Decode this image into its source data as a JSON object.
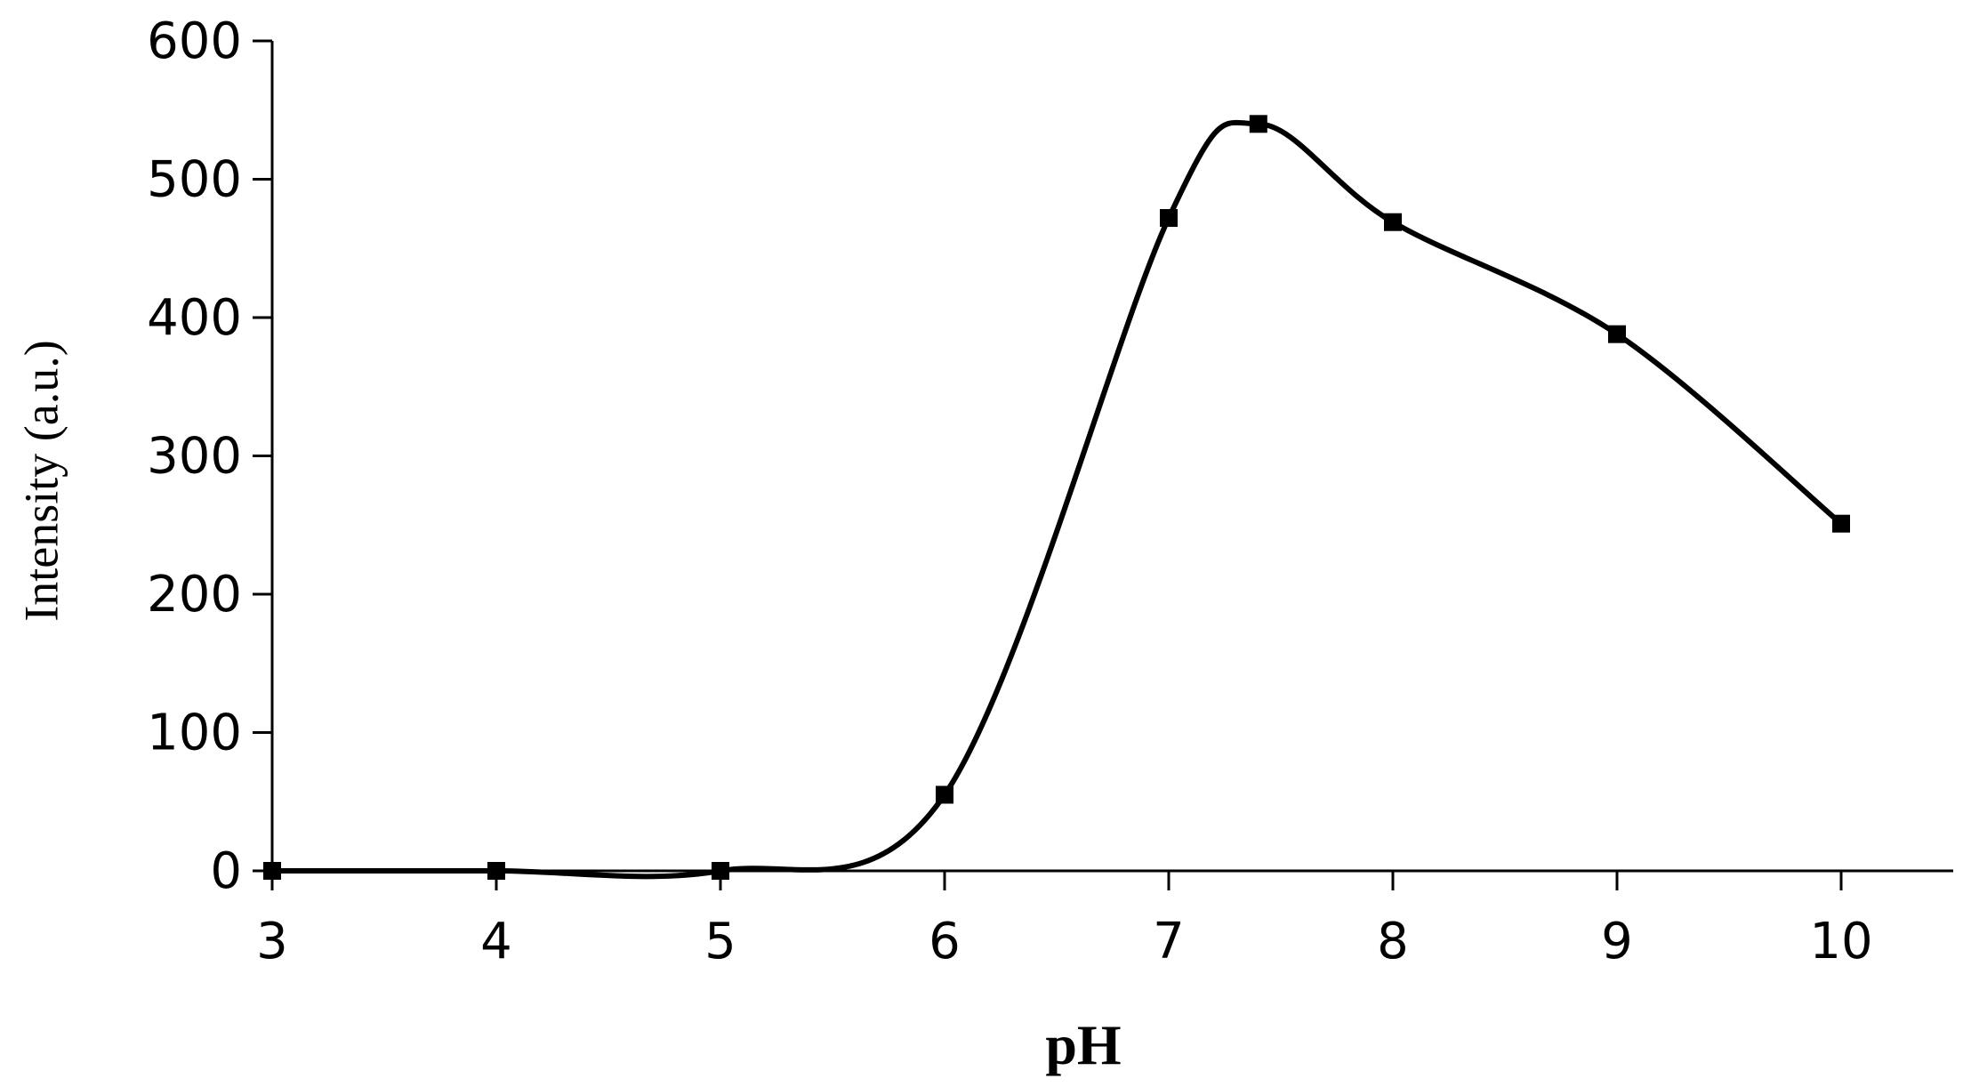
{
  "chart_data": {
    "type": "line",
    "title": "",
    "xlabel": "pH",
    "ylabel": "Intensity (a.u.)",
    "xlim": [
      3,
      10
    ],
    "ylim": [
      0,
      600
    ],
    "x_ticks": [
      3,
      4,
      5,
      6,
      7,
      8,
      9,
      10
    ],
    "y_ticks": [
      0,
      100,
      200,
      300,
      400,
      500,
      600
    ],
    "grid": false,
    "smooth": true,
    "marker": "square",
    "line_color": "#000000",
    "series": [
      {
        "x": [
          3,
          4,
          5,
          6,
          7,
          7.4,
          8,
          9,
          10
        ],
        "y": [
          0,
          0,
          0,
          55,
          472,
          540,
          469,
          388,
          251
        ]
      }
    ]
  }
}
